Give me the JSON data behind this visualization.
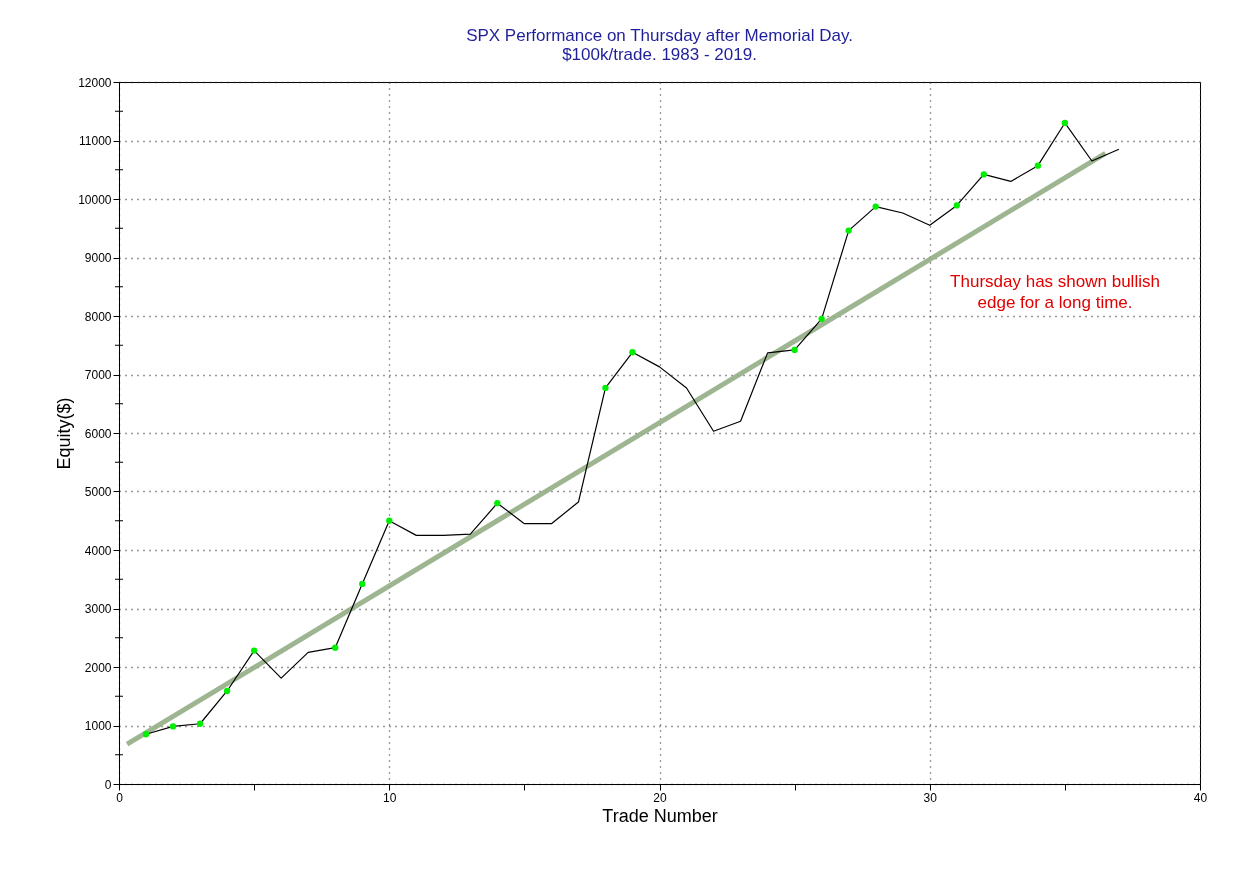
{
  "chart_data": {
    "type": "line",
    "title": "SPX Performance on Thursday after Memorial Day.",
    "subtitle": "$100k/trade. 1983 - 2019.",
    "xlabel": "Trade Number",
    "ylabel": "Equity($)",
    "x": [
      1,
      2,
      3,
      4,
      5,
      6,
      7,
      8,
      9,
      10,
      11,
      12,
      13,
      14,
      15,
      16,
      17,
      18,
      19,
      20,
      21,
      22,
      23,
      24,
      25,
      26,
      27,
      28,
      29,
      30,
      31,
      32,
      33,
      34,
      35,
      36,
      37
    ],
    "series": [
      {
        "color": "#000000",
        "values": [
          850,
          985,
          1030,
          1590,
          2280,
          1810,
          2250,
          2330,
          3420,
          4500,
          4250,
          4250,
          4270,
          4800,
          4450,
          4450,
          4820,
          6770,
          7380,
          7130,
          6770,
          6030,
          6200,
          7370,
          7420,
          7950,
          9460,
          9870,
          9760,
          9550,
          9890,
          10420,
          10300,
          10570,
          11300,
          10650,
          10850
        ]
      },
      {
        "type": "scatter",
        "color": "#00ee00",
        "x": [
          1,
          2,
          3,
          4,
          5,
          8,
          9,
          10,
          14,
          18,
          19,
          25,
          26,
          27,
          28,
          31,
          32,
          34,
          35
        ],
        "values": [
          850,
          985,
          1030,
          1590,
          2280,
          2330,
          3420,
          4500,
          4800,
          6770,
          7380,
          7420,
          7950,
          9460,
          9870,
          9890,
          10420,
          10570,
          11300
        ]
      },
      {
        "type": "line",
        "color": "#92ad84",
        "x": [
          0.3,
          36.5
        ],
        "values": [
          680,
          10780
        ]
      }
    ],
    "xlim": [
      0,
      40
    ],
    "xticks": [
      0,
      {
        "value": 5,
        "label": null
      },
      10,
      {
        "value": 15,
        "label": null
      },
      20,
      {
        "value": 25,
        "label": null
      },
      30,
      {
        "value": 35,
        "label": null
      },
      40
    ],
    "ylim": [
      0,
      12000
    ],
    "yticks": [
      0,
      {
        "value": 500,
        "label": null
      },
      1000,
      {
        "value": 1500,
        "label": null
      },
      2000,
      {
        "value": 2500,
        "label": null
      },
      3000,
      {
        "value": 3500,
        "label": null
      },
      4000,
      {
        "value": 4500,
        "label": null
      },
      5000,
      {
        "value": 5500,
        "label": null
      },
      6000,
      {
        "value": 6500,
        "label": null
      },
      7000,
      {
        "value": 7500,
        "label": null
      },
      8000,
      {
        "value": 8500,
        "label": null
      },
      9000,
      {
        "value": 9500,
        "label": null
      },
      10000,
      {
        "value": 10500,
        "label": null
      },
      11000,
      {
        "value": 11500,
        "label": null
      },
      12000
    ],
    "grid": true,
    "annotations": [
      "Thursday has shown bullish\nedge for a long time."
    ]
  }
}
